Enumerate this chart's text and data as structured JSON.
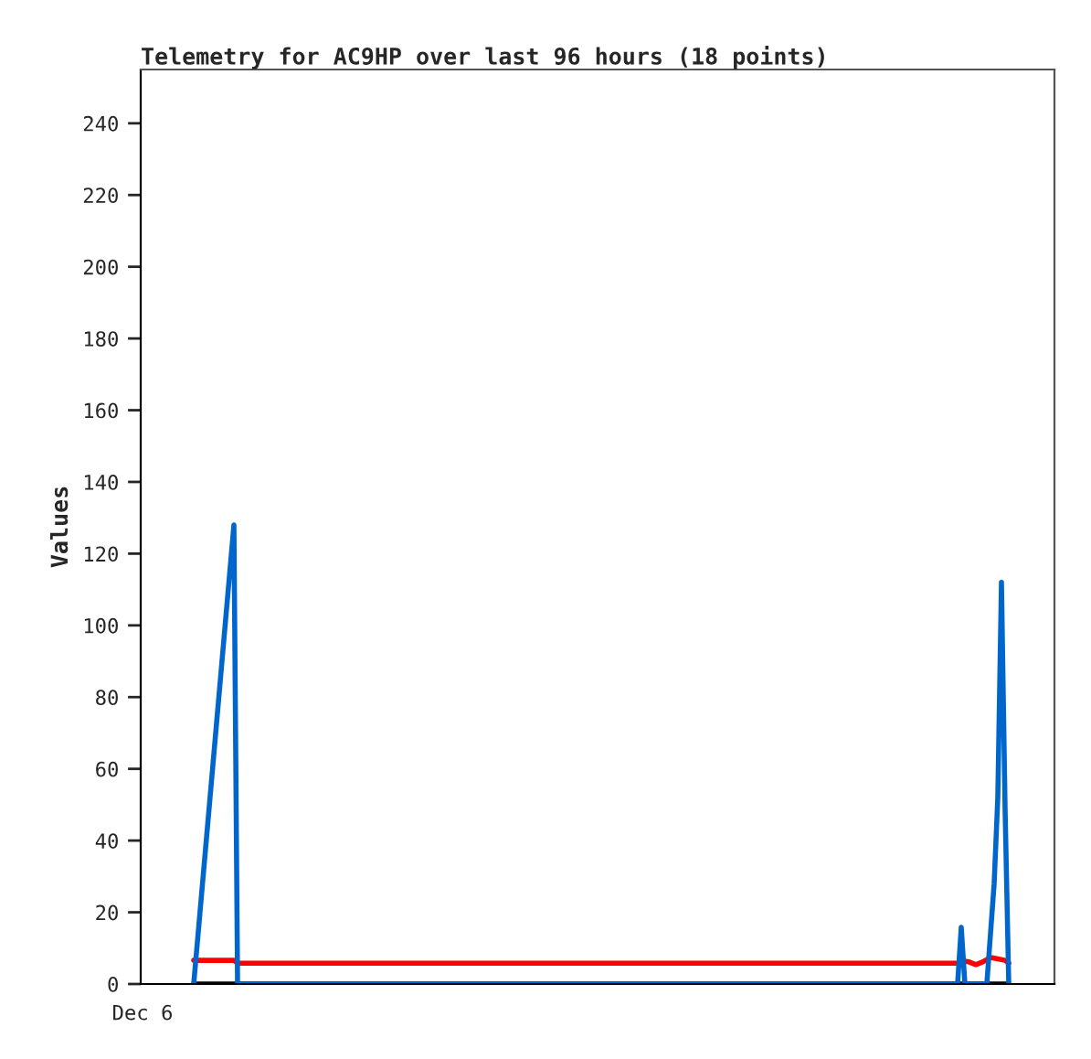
{
  "chart_data": {
    "type": "line",
    "title": "Telemetry for AC9HP over last 96 hours (18 points)",
    "ylabel": "Values",
    "ylim": [
      0,
      255
    ],
    "yticks": [
      0,
      20,
      40,
      60,
      80,
      100,
      120,
      140,
      160,
      180,
      200,
      220,
      240
    ],
    "grid": false,
    "legend": false,
    "marker": "none",
    "line_style": "solid",
    "categories": [
      "Dec 6",
      null,
      null,
      null,
      null,
      null,
      null,
      null,
      null,
      null,
      null,
      null,
      null,
      null,
      null,
      null,
      null,
      null,
      null,
      null,
      null,
      null,
      null,
      null,
      null,
      null,
      null,
      null,
      null,
      null,
      null,
      null,
      null,
      null,
      null,
      null,
      null,
      null,
      null,
      null,
      null,
      null,
      null,
      null,
      null,
      null,
      null,
      null,
      null,
      null,
      null,
      null,
      null,
      null,
      null,
      null,
      null,
      null,
      null,
      null,
      null,
      null,
      null,
      null,
      null,
      null,
      null,
      null,
      null,
      null,
      null,
      null,
      null,
      null,
      null,
      null,
      null,
      null,
      null,
      null,
      null,
      null,
      null,
      null,
      null,
      null,
      null,
      null,
      null,
      null,
      null,
      null,
      null,
      null,
      null,
      null,
      null,
      null,
      null,
      null,
      null,
      null,
      null,
      null,
      null,
      null,
      null,
      null,
      null,
      null,
      null,
      null,
      null,
      null,
      null,
      null,
      null,
      null,
      null,
      null,
      null,
      null,
      null,
      null,
      null,
      null,
      null,
      null,
      null,
      null,
      null,
      null,
      null,
      null,
      null,
      null,
      null,
      null,
      null,
      null,
      null,
      null,
      null,
      null,
      null,
      null,
      null,
      null,
      null,
      null,
      null,
      null,
      null,
      null,
      null,
      null,
      null,
      null,
      null,
      null,
      null,
      null,
      null,
      null,
      null,
      null,
      null,
      null,
      null,
      null,
      null,
      null,
      null,
      null,
      null,
      null,
      null,
      null,
      null,
      null,
      null,
      null,
      null,
      null,
      null,
      null,
      null,
      null,
      null,
      null,
      null,
      null,
      null,
      null,
      null,
      null,
      null,
      null,
      null,
      null,
      null,
      null,
      null,
      null,
      null,
      null,
      null,
      null,
      null,
      null,
      null,
      null,
      null,
      null,
      null,
      null,
      null,
      null,
      null,
      null,
      null,
      null,
      null,
      null,
      null,
      null,
      null,
      null,
      null,
      null,
      null,
      null,
      null,
      null,
      null,
      null,
      null,
      null,
      null,
      null,
      null,
      null,
      null,
      null,
      null,
      null,
      null,
      null,
      null,
      null
    ],
    "series": [
      {
        "color": "#000000",
        "values": [
          null,
          null,
          null,
          null,
          null,
          null,
          null,
          null,
          null,
          null,
          null,
          null,
          null,
          null,
          0,
          null,
          null,
          null,
          null,
          null,
          null,
          null,
          null,
          null,
          null,
          null,
          null,
          null,
          null,
          null,
          null,
          null,
          null,
          null,
          null,
          null,
          null,
          null,
          null,
          null,
          null,
          null,
          null,
          null,
          null,
          null,
          null,
          null,
          null,
          null,
          null,
          null,
          null,
          null,
          null,
          null,
          null,
          null,
          null,
          null,
          null,
          null,
          null,
          null,
          null,
          null,
          null,
          null,
          null,
          null,
          null,
          null,
          null,
          null,
          null,
          null,
          null,
          null,
          null,
          null,
          null,
          null,
          null,
          null,
          null,
          null,
          null,
          null,
          null,
          null,
          null,
          null,
          null,
          null,
          null,
          null,
          null,
          null,
          null,
          null,
          null,
          null,
          null,
          null,
          null,
          null,
          null,
          null,
          null,
          null,
          null,
          null,
          null,
          null,
          null,
          null,
          null,
          null,
          null,
          null,
          null,
          null,
          null,
          null,
          null,
          null,
          null,
          null,
          null,
          null,
          null,
          null,
          null,
          null,
          null,
          null,
          null,
          null,
          null,
          null,
          null,
          null,
          null,
          null,
          null,
          null,
          null,
          null,
          null,
          null,
          null,
          null,
          null,
          null,
          null,
          null,
          null,
          null,
          null,
          null,
          null,
          null,
          null,
          null,
          null,
          null,
          null,
          null,
          null,
          null,
          null,
          null,
          null,
          null,
          null,
          null,
          null,
          null,
          null,
          null,
          null,
          null,
          null,
          null,
          null,
          null,
          null,
          null,
          null,
          null,
          null,
          null,
          null,
          null,
          null,
          null,
          null,
          null,
          null,
          null,
          null,
          null,
          null,
          null,
          null,
          null,
          null,
          null,
          null,
          null,
          null,
          null,
          null,
          null,
          null,
          null,
          null,
          null,
          null,
          null,
          null,
          null,
          null,
          null,
          null,
          null,
          null,
          null,
          null,
          null,
          null,
          null,
          null,
          null,
          null,
          null,
          null,
          0,
          null,
          null,
          null,
          null,
          null,
          null,
          null,
          null,
          null,
          null,
          null,
          null
        ]
      },
      {
        "color": "#ff0000",
        "values": [
          null,
          null,
          null,
          null,
          null,
          null,
          null,
          null,
          null,
          null,
          null,
          null,
          null,
          null,
          6.6,
          null,
          null,
          null,
          null,
          null,
          null,
          null,
          null,
          null,
          null,
          6.6,
          5.8,
          null,
          null,
          null,
          null,
          null,
          null,
          null,
          null,
          null,
          null,
          null,
          null,
          null,
          null,
          null,
          null,
          null,
          null,
          null,
          null,
          null,
          null,
          null,
          null,
          null,
          null,
          null,
          null,
          null,
          null,
          null,
          null,
          null,
          null,
          null,
          null,
          null,
          null,
          null,
          null,
          null,
          null,
          null,
          null,
          null,
          null,
          null,
          null,
          null,
          null,
          null,
          null,
          null,
          null,
          null,
          null,
          null,
          null,
          null,
          null,
          null,
          null,
          null,
          null,
          null,
          null,
          null,
          null,
          null,
          null,
          null,
          null,
          null,
          null,
          null,
          null,
          null,
          null,
          null,
          null,
          null,
          null,
          null,
          null,
          null,
          null,
          null,
          null,
          null,
          null,
          null,
          null,
          null,
          null,
          null,
          null,
          null,
          null,
          null,
          null,
          null,
          null,
          null,
          null,
          null,
          null,
          null,
          null,
          null,
          null,
          null,
          null,
          null,
          null,
          null,
          null,
          null,
          null,
          null,
          null,
          null,
          null,
          null,
          null,
          null,
          null,
          null,
          null,
          null,
          null,
          null,
          null,
          null,
          null,
          null,
          null,
          null,
          null,
          null,
          null,
          null,
          null,
          null,
          null,
          null,
          null,
          null,
          null,
          null,
          null,
          null,
          null,
          null,
          null,
          null,
          null,
          null,
          null,
          null,
          null,
          null,
          null,
          null,
          null,
          null,
          null,
          null,
          null,
          null,
          null,
          null,
          null,
          null,
          null,
          null,
          null,
          null,
          null,
          null,
          null,
          null,
          null,
          null,
          null,
          null,
          null,
          null,
          null,
          null,
          null,
          null,
          null,
          null,
          null,
          null,
          null,
          5.8,
          6.6,
          null,
          6.2,
          null,
          5.4,
          null,
          6.2,
          null,
          7.4,
          null,
          7.0,
          null,
          6.6,
          5.8,
          null,
          null,
          null,
          null,
          null,
          null,
          null,
          null,
          null,
          null,
          null,
          null
        ]
      },
      {
        "color": "#0066cc",
        "values": [
          null,
          null,
          null,
          null,
          null,
          null,
          null,
          null,
          null,
          null,
          null,
          null,
          null,
          null,
          0,
          null,
          null,
          null,
          null,
          null,
          null,
          null,
          null,
          null,
          null,
          128,
          0,
          null,
          null,
          null,
          null,
          null,
          null,
          null,
          null,
          null,
          null,
          null,
          null,
          null,
          null,
          null,
          null,
          null,
          null,
          null,
          null,
          null,
          null,
          null,
          null,
          null,
          null,
          null,
          null,
          null,
          null,
          null,
          null,
          null,
          null,
          null,
          null,
          null,
          null,
          null,
          null,
          null,
          null,
          null,
          null,
          null,
          null,
          null,
          null,
          null,
          null,
          null,
          null,
          null,
          null,
          null,
          null,
          null,
          null,
          null,
          null,
          null,
          null,
          null,
          null,
          null,
          null,
          null,
          null,
          null,
          null,
          null,
          null,
          null,
          null,
          null,
          null,
          null,
          null,
          null,
          null,
          null,
          null,
          null,
          null,
          null,
          null,
          null,
          null,
          null,
          null,
          null,
          null,
          null,
          null,
          null,
          null,
          null,
          null,
          null,
          null,
          null,
          null,
          null,
          null,
          null,
          null,
          null,
          null,
          null,
          null,
          null,
          null,
          null,
          null,
          null,
          null,
          null,
          null,
          null,
          null,
          null,
          null,
          null,
          null,
          null,
          null,
          null,
          null,
          null,
          null,
          null,
          null,
          null,
          null,
          null,
          null,
          null,
          null,
          null,
          null,
          null,
          null,
          null,
          null,
          null,
          null,
          null,
          null,
          null,
          null,
          null,
          null,
          null,
          null,
          null,
          null,
          null,
          null,
          null,
          null,
          null,
          null,
          null,
          null,
          null,
          null,
          null,
          null,
          null,
          null,
          null,
          null,
          null,
          null,
          null,
          null,
          null,
          null,
          null,
          null,
          null,
          null,
          null,
          null,
          null,
          null,
          null,
          null,
          null,
          null,
          null,
          null,
          null,
          null,
          null,
          null,
          0,
          15.8,
          0,
          null,
          null,
          null,
          null,
          null,
          0,
          14,
          28,
          52,
          112,
          48.5,
          0,
          null,
          null,
          null,
          null,
          null,
          null,
          null,
          null,
          null,
          null,
          null,
          null
        ]
      }
    ]
  }
}
